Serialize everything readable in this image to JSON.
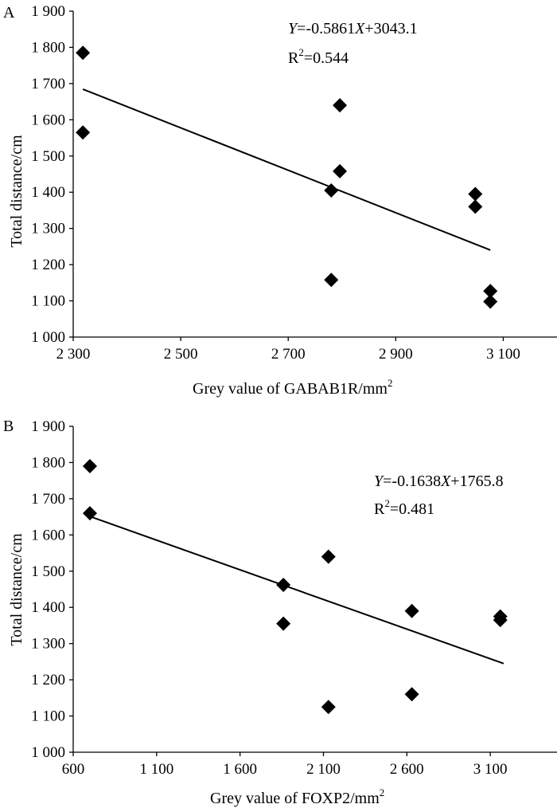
{
  "chart_data": [
    {
      "type": "scatter",
      "panel_label": "A",
      "xlabel": "Grey value of GABAB1R/mm",
      "xlabel_sup": "2",
      "ylabel": "Total distance/cm",
      "xlim": [
        2300,
        3200
      ],
      "ylim": [
        1000,
        1900
      ],
      "xticks": [
        2300,
        2500,
        2700,
        2900,
        3100
      ],
      "xtick_labels": [
        "2 300",
        "2 500",
        "2 700",
        "2 900",
        "3 100"
      ],
      "yticks": [
        1000,
        1100,
        1200,
        1300,
        1400,
        1500,
        1600,
        1700,
        1800,
        1900
      ],
      "ytick_labels": [
        "1 000",
        "1 100",
        "1 200",
        "1 300",
        "1 400",
        "1 500",
        "1 600",
        "1 700",
        "1 800",
        "1 900"
      ],
      "points": [
        {
          "x": 2318,
          "y": 1785
        },
        {
          "x": 2318,
          "y": 1565
        },
        {
          "x": 2780,
          "y": 1405
        },
        {
          "x": 2780,
          "y": 1158
        },
        {
          "x": 2796,
          "y": 1640
        },
        {
          "x": 2796,
          "y": 1458
        },
        {
          "x": 3048,
          "y": 1395
        },
        {
          "x": 3048,
          "y": 1360
        },
        {
          "x": 3076,
          "y": 1127
        },
        {
          "x": 3076,
          "y": 1098
        }
      ],
      "trendline": {
        "slope": -0.5861,
        "intercept": 3043.1,
        "x_range": [
          2318,
          3076
        ]
      },
      "equation": {
        "y": "Y",
        "rhs1": "=-0.5861",
        "x": "X",
        "rhs2": "+3043.1"
      },
      "r2": {
        "base": "R",
        "sup": "2",
        "value": "=0.544"
      }
    },
    {
      "type": "scatter",
      "panel_label": "B",
      "xlabel": "Grey value of FOXP2/mm",
      "xlabel_sup": "2",
      "ylabel": "Total distance/cm",
      "xlim": [
        600,
        3500
      ],
      "ylim": [
        1000,
        1900
      ],
      "xticks": [
        600,
        1100,
        1600,
        2100,
        2600,
        3100
      ],
      "xtick_labels": [
        "600",
        "1 100",
        "1 600",
        "2 100",
        "2 600",
        "3 100"
      ],
      "yticks": [
        1000,
        1100,
        1200,
        1300,
        1400,
        1500,
        1600,
        1700,
        1800,
        1900
      ],
      "ytick_labels": [
        "1 000",
        "1 100",
        "1 200",
        "1 300",
        "1 400",
        "1 500",
        "1 600",
        "1 700",
        "1 800",
        "1 900"
      ],
      "points": [
        {
          "x": 700,
          "y": 1790
        },
        {
          "x": 700,
          "y": 1660
        },
        {
          "x": 1860,
          "y": 1462
        },
        {
          "x": 1860,
          "y": 1355
        },
        {
          "x": 2130,
          "y": 1540
        },
        {
          "x": 2130,
          "y": 1125
        },
        {
          "x": 2630,
          "y": 1390
        },
        {
          "x": 2630,
          "y": 1160
        },
        {
          "x": 3160,
          "y": 1375
        },
        {
          "x": 3160,
          "y": 1365
        }
      ],
      "trendline": {
        "slope": -0.1638,
        "intercept": 1765.8,
        "x_range": [
          700,
          3180
        ]
      },
      "equation": {
        "y": "Y",
        "rhs1": "=-0.1638",
        "x": "X",
        "rhs2": "+1765.8"
      },
      "r2": {
        "base": "R",
        "sup": "2",
        "value": "=0.481"
      }
    }
  ]
}
